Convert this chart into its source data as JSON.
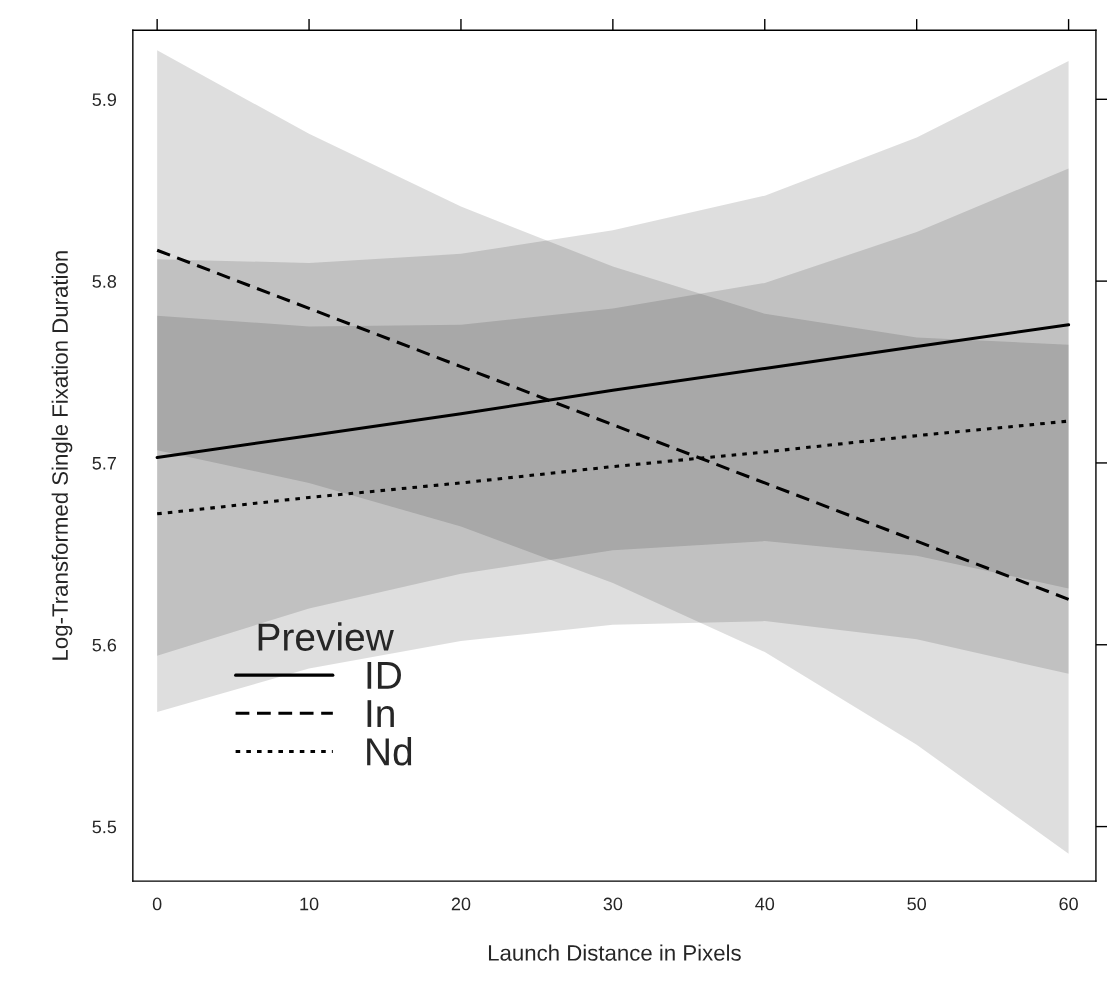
{
  "chart_data": {
    "type": "line",
    "xlabel": "Launch Distance in Pixels",
    "ylabel": "Log-Transformed Single Fixation Duration",
    "legend_title": "Preview",
    "legend": "bottom left",
    "grid": false,
    "x": [
      0,
      10,
      20,
      30,
      40,
      50,
      60
    ],
    "series": [
      {
        "name": "ID",
        "color": "#000000",
        "line_style": "solid",
        "values": [
          5.703,
          5.715,
          5.727,
          5.74,
          5.752,
          5.764,
          5.776
        ],
        "lower": [
          5.594,
          5.62,
          5.639,
          5.652,
          5.657,
          5.649,
          5.631
        ],
        "upper": [
          5.812,
          5.81,
          5.815,
          5.828,
          5.847,
          5.879,
          5.921
        ]
      },
      {
        "name": "In",
        "color": "#010101",
        "line_style": "dashed",
        "values": [
          5.817,
          5.785,
          5.753,
          5.721,
          5.689,
          5.657,
          5.625
        ],
        "lower": [
          5.707,
          5.689,
          5.665,
          5.634,
          5.596,
          5.545,
          5.485
        ],
        "upper": [
          5.927,
          5.881,
          5.841,
          5.808,
          5.782,
          5.769,
          5.765
        ]
      },
      {
        "name": "Nd",
        "color": "#020202",
        "line_style": "dotted",
        "values": [
          5.672,
          5.681,
          5.689,
          5.698,
          5.706,
          5.715,
          5.723
        ],
        "lower": [
          5.563,
          5.587,
          5.602,
          5.611,
          5.613,
          5.603,
          5.584
        ],
        "upper": [
          5.781,
          5.775,
          5.776,
          5.785,
          5.799,
          5.827,
          5.862
        ]
      }
    ],
    "xlim": [
      -1.6,
      61.8
    ],
    "xticks": [
      0,
      10,
      20,
      30,
      40,
      50,
      60
    ],
    "ylim": [
      5.47,
      5.938
    ],
    "yticks": [
      5.5,
      5.6,
      5.7,
      5.8,
      5.9
    ]
  }
}
